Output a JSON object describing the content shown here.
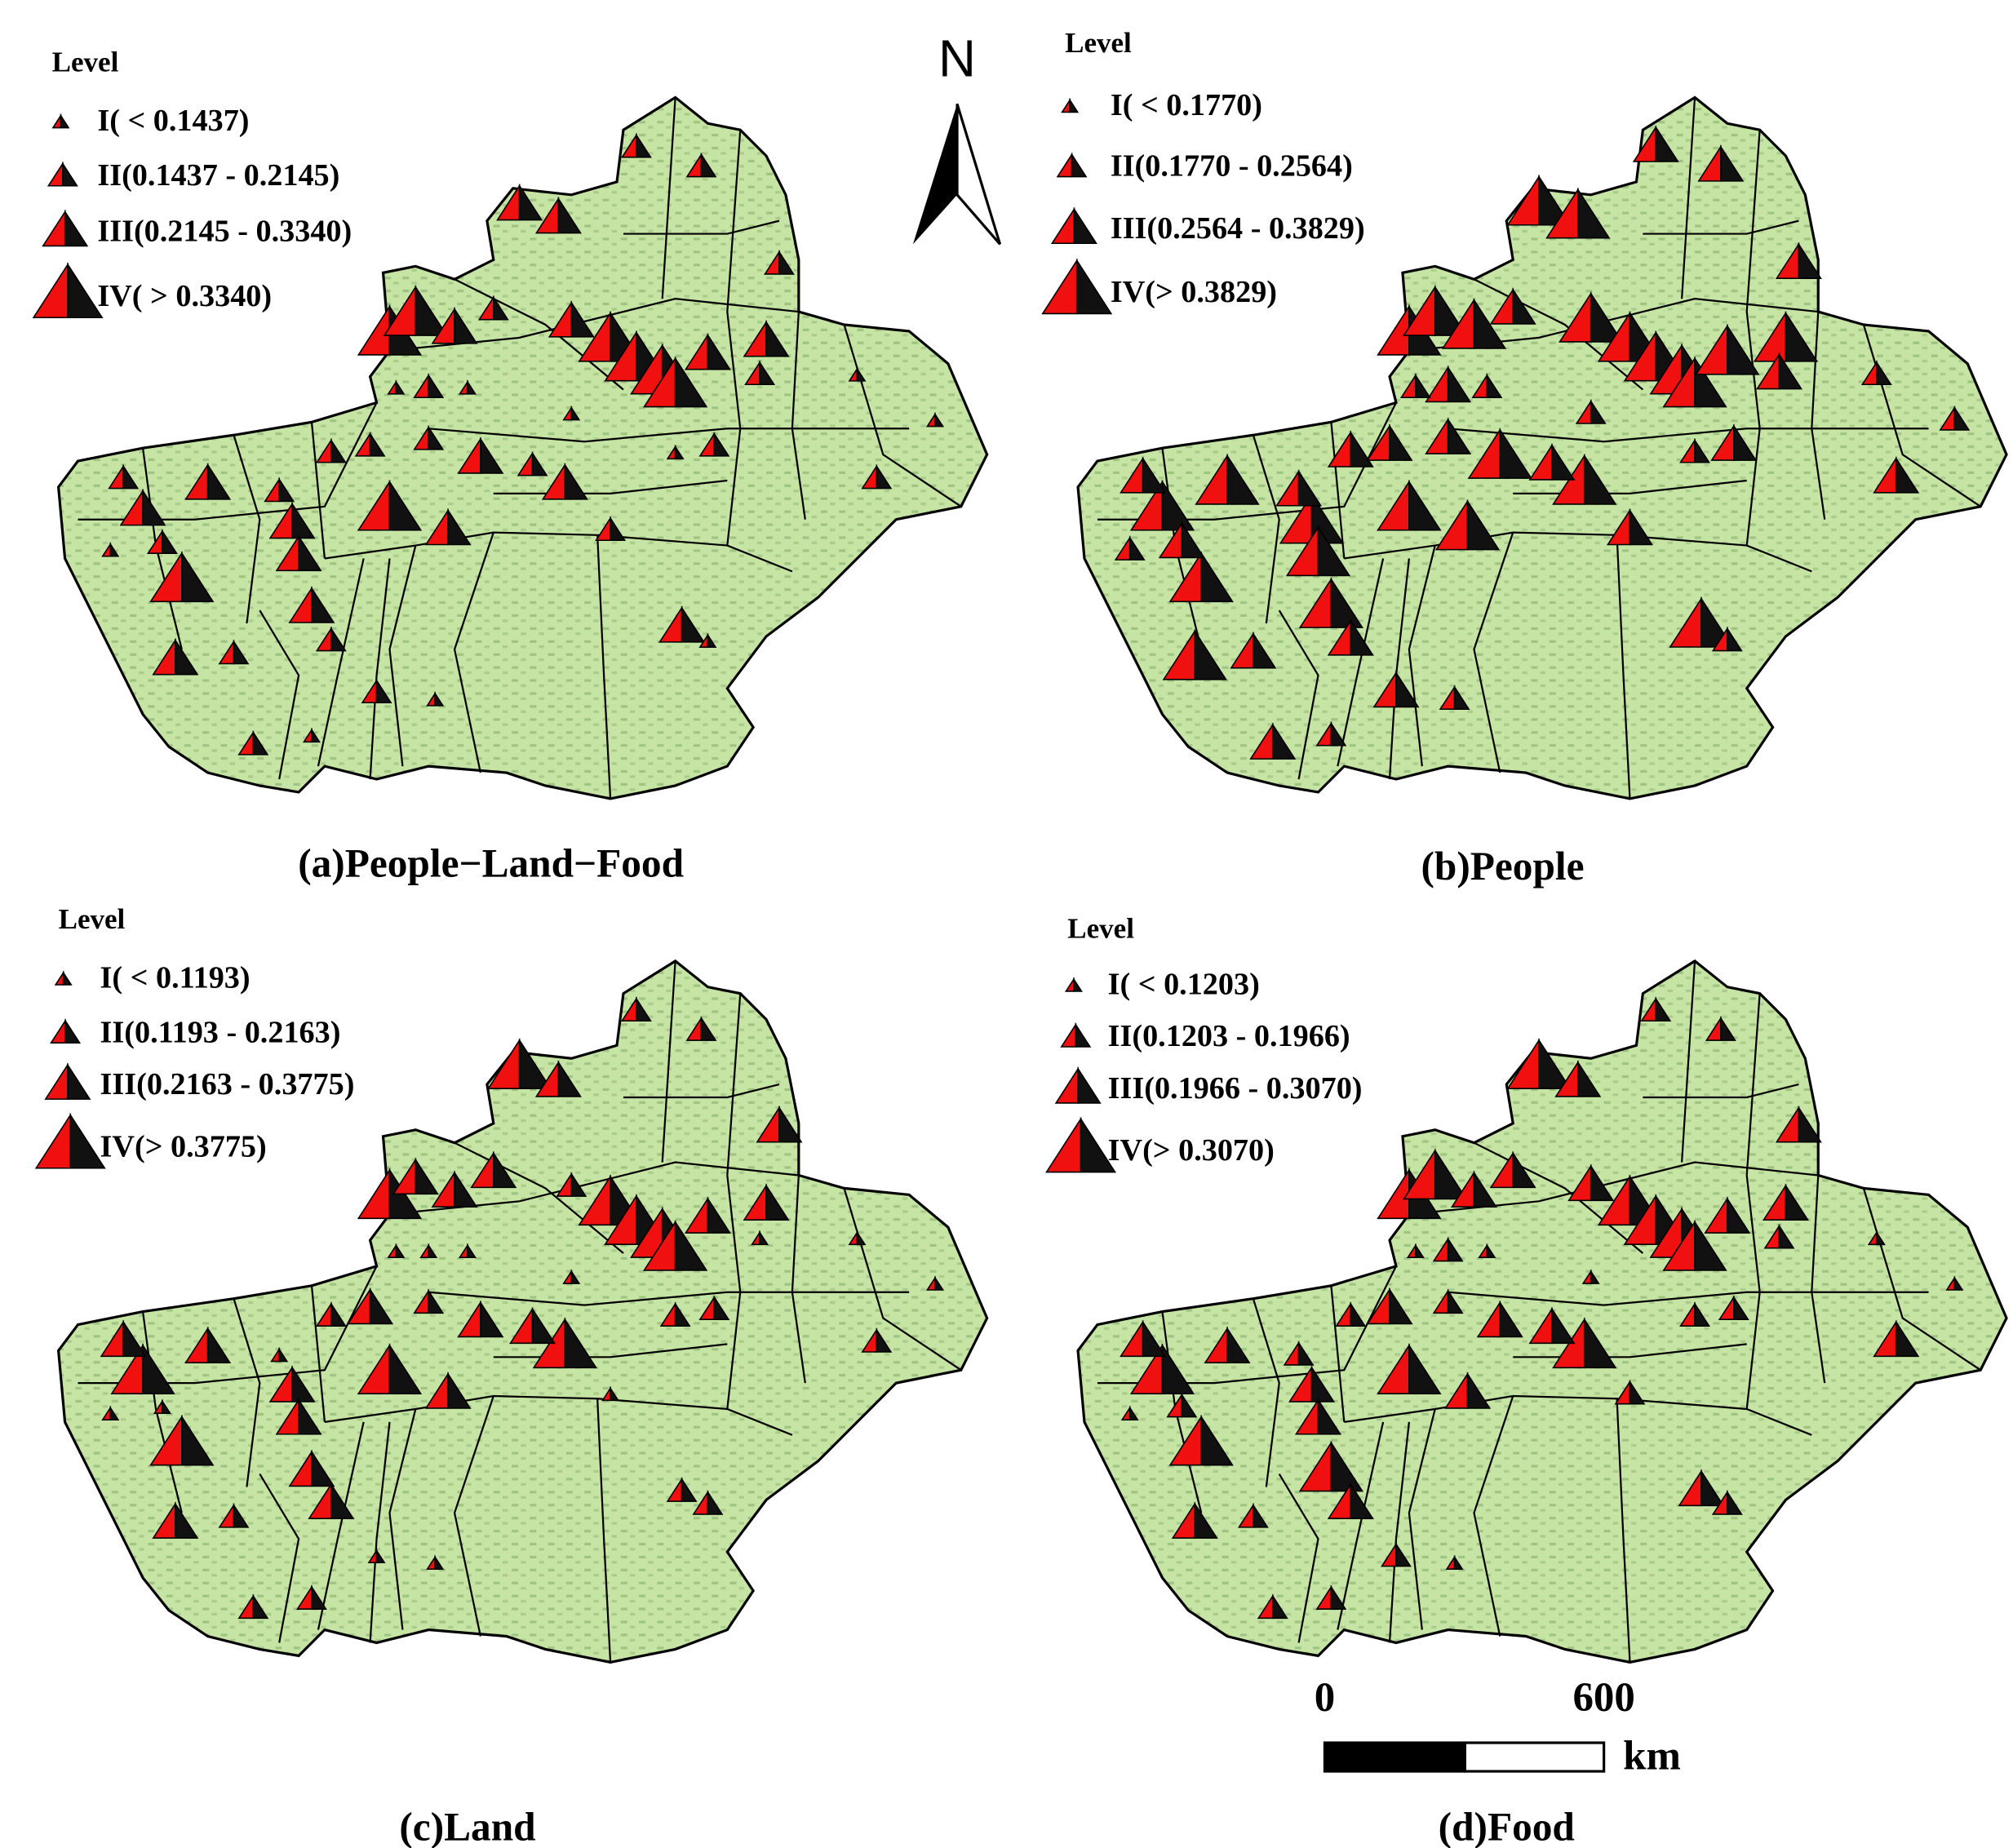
{
  "north": "N",
  "panels": [
    {
      "caption": "(a)People−Land−Food",
      "legend_title": "Level",
      "legend": [
        "I( < 0.1437)",
        "II(0.1437 - 0.2145)",
        "III(0.2145 - 0.3340)",
        "IV( > 0.3340)"
      ]
    },
    {
      "caption": "(b)People",
      "legend_title": "Level",
      "legend": [
        "I( < 0.1770)",
        "II(0.1770 - 0.2564)",
        "III(0.2564 - 0.3829)",
        "IV(> 0.3829)"
      ]
    },
    {
      "caption": "(c)Land",
      "legend_title": "Level",
      "legend": [
        "I( < 0.1193)",
        "II(0.1193 - 0.2163)",
        "III(0.2163 - 0.3775)",
        "IV(> 0.3775)"
      ]
    },
    {
      "caption": "(d)Food",
      "legend_title": "Level",
      "legend": [
        "I( < 0.1203)",
        "II(0.1203 - 0.1966)",
        "III(0.1966 - 0.3070)",
        "IV(> 0.3070)"
      ]
    }
  ],
  "scale_bar": {
    "labels": [
      "0",
      "600"
    ],
    "unit": "km"
  }
}
